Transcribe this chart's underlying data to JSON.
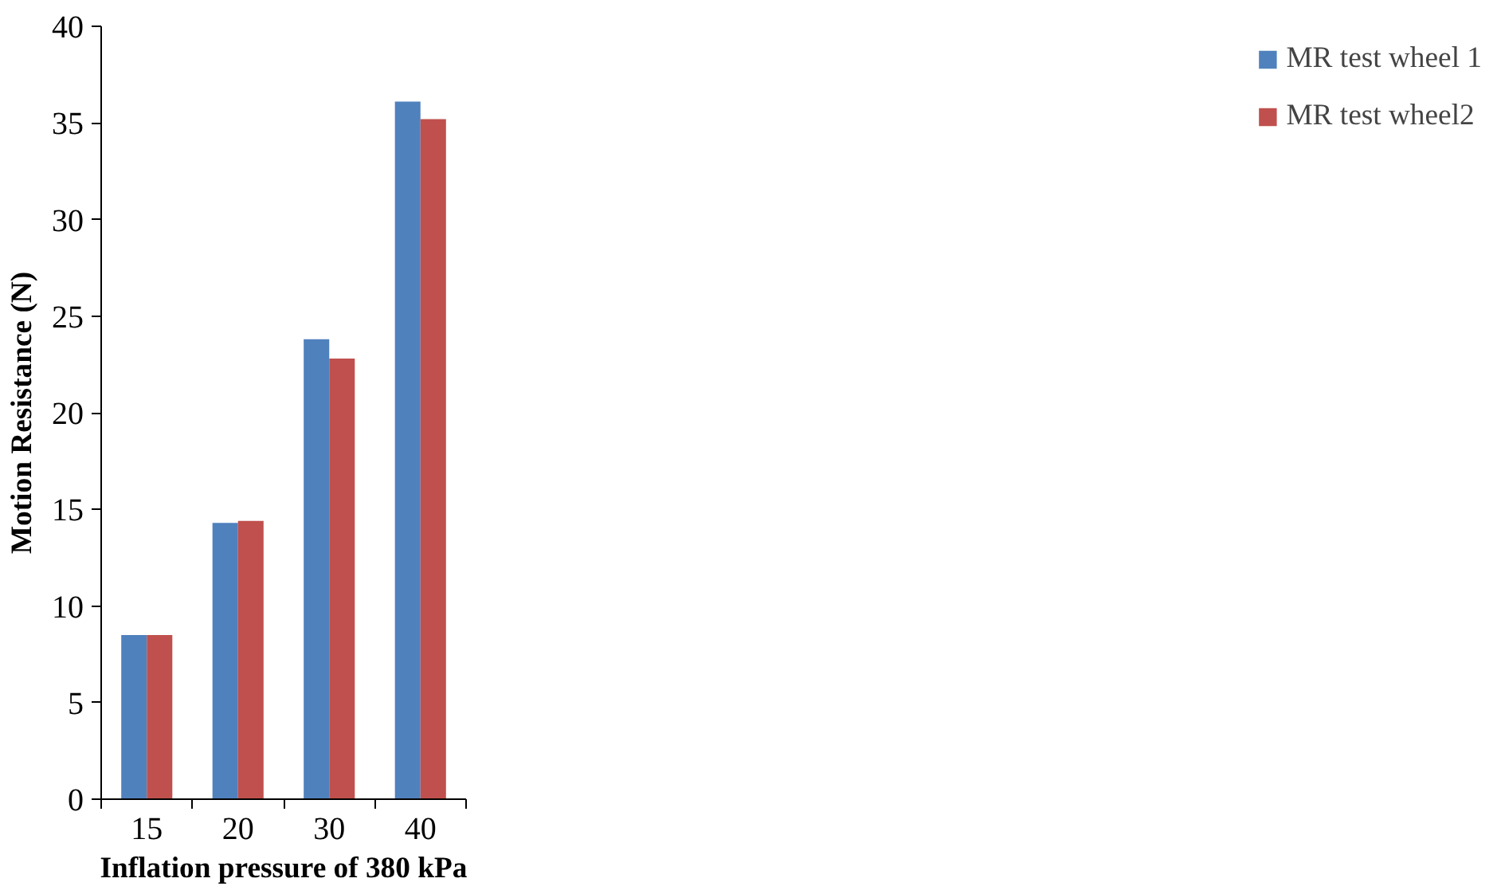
{
  "chart_data": {
    "type": "bar",
    "xlabel": "Inflation pressure of 380 kPa",
    "ylabel": "Motion Resistance (N)",
    "categories": [
      "15",
      "20",
      "30",
      "40"
    ],
    "series": [
      {
        "name": "MR test wheel 1",
        "color": "#4f81bd",
        "values": [
          8.5,
          14.3,
          23.8,
          36.1
        ]
      },
      {
        "name": "MR test wheel2",
        "color": "#c0504d",
        "values": [
          8.5,
          14.4,
          22.8,
          35.2
        ]
      }
    ],
    "ylim": [
      0,
      40
    ],
    "yticks": [
      0,
      5,
      10,
      15,
      20,
      25,
      30,
      35,
      40
    ],
    "grid": false,
    "legend": "right"
  }
}
